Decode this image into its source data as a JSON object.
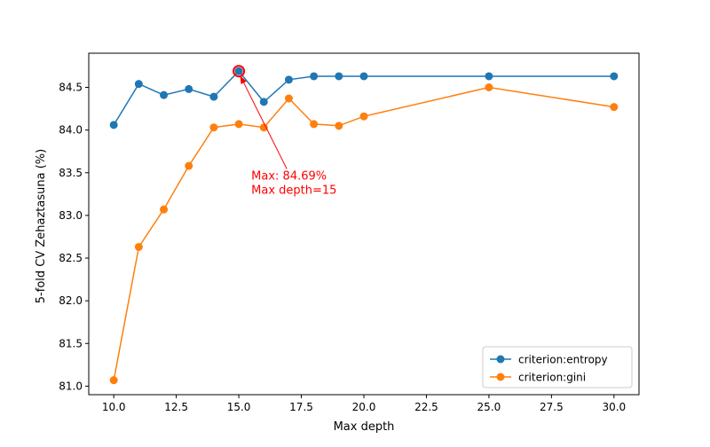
{
  "chart_data": {
    "type": "line",
    "title": "",
    "xlabel": "Max depth",
    "ylabel": "5-fold CV Zehaztasuna (%)",
    "xlim": [
      9.0,
      31.0
    ],
    "ylim": [
      80.9,
      84.9
    ],
    "xticks": [
      10.0,
      12.5,
      15.0,
      17.5,
      20.0,
      22.5,
      25.0,
      27.5,
      30.0
    ],
    "xtick_labels": [
      "10.0",
      "12.5",
      "15.0",
      "17.5",
      "20.0",
      "22.5",
      "25.0",
      "27.5",
      "30.0"
    ],
    "yticks": [
      81.0,
      81.5,
      82.0,
      82.5,
      83.0,
      83.5,
      84.0,
      84.5
    ],
    "ytick_labels": [
      "81.0",
      "81.5",
      "82.0",
      "82.5",
      "83.0",
      "83.5",
      "84.0",
      "84.5"
    ],
    "grid": false,
    "legend_position": "lower-right",
    "series": [
      {
        "name": "criterion:entropy",
        "color": "#1f77b4",
        "marker": "circle",
        "x": [
          10,
          11,
          12,
          13,
          14,
          15,
          16,
          17,
          18,
          19,
          20,
          25,
          30
        ],
        "y": [
          84.06,
          84.54,
          84.41,
          84.48,
          84.39,
          84.69,
          84.33,
          84.59,
          84.63,
          84.63,
          84.63,
          84.63,
          84.63
        ]
      },
      {
        "name": "criterion:gini",
        "color": "#ff7f0e",
        "marker": "circle",
        "x": [
          10,
          11,
          12,
          13,
          14,
          15,
          16,
          17,
          18,
          19,
          20,
          25,
          30
        ],
        "y": [
          81.07,
          82.63,
          83.07,
          83.58,
          84.03,
          84.07,
          84.03,
          84.37,
          84.07,
          84.05,
          84.16,
          84.5,
          84.27
        ]
      }
    ],
    "annotation": {
      "lines": [
        "Max: 84.69%",
        "Max depth=15"
      ],
      "point": [
        15,
        84.69
      ],
      "text_anchor": [
        15.5,
        83.42
      ],
      "color": "#ff0000"
    }
  }
}
